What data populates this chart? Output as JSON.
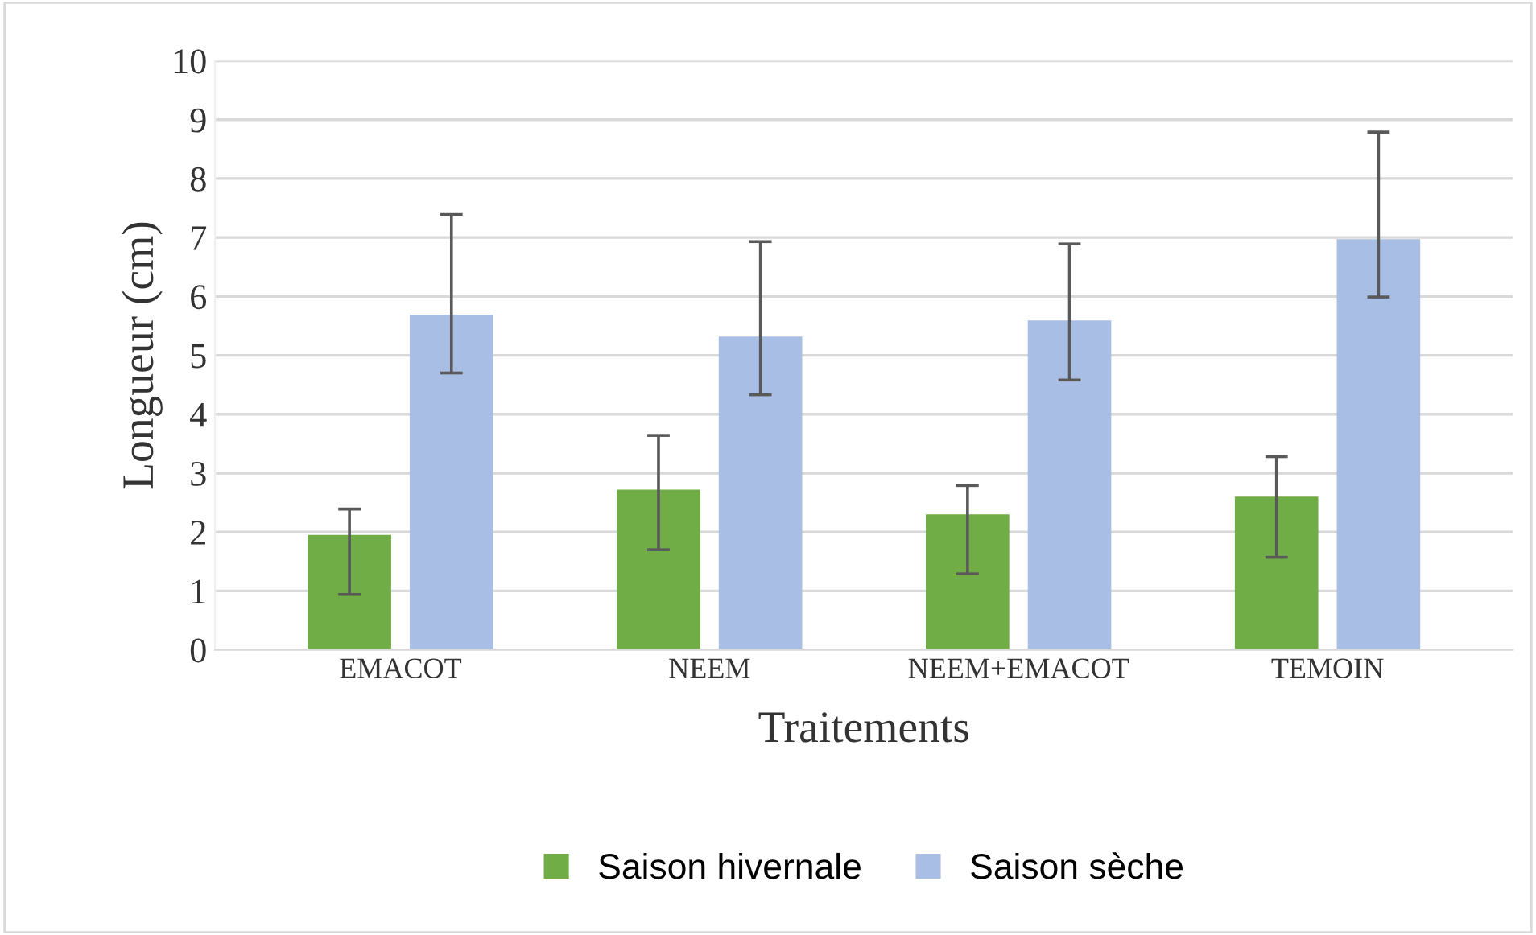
{
  "chart_data": {
    "type": "bar",
    "xlabel": "Traitements",
    "ylabel": "Longueur (cm)",
    "categories": [
      "EMACOT",
      "NEEM",
      "NEEM+EMACOT",
      "TEMOIN"
    ],
    "series": [
      {
        "name": "Saison hivernale",
        "color": "#70ad47",
        "values": [
          1.95,
          2.72,
          2.3,
          2.6
        ],
        "errors": [
          [
            0.94,
            2.39
          ],
          [
            1.7,
            3.64
          ],
          [
            1.29,
            2.79
          ],
          [
            1.57,
            3.28
          ]
        ]
      },
      {
        "name": "Saison sèche",
        "color": "#a9bee4",
        "values": [
          5.69,
          5.32,
          5.59,
          6.97
        ],
        "errors": [
          [
            4.7,
            7.39
          ],
          [
            4.33,
            6.93
          ],
          [
            4.58,
            6.89
          ],
          [
            5.99,
            8.79
          ]
        ]
      }
    ],
    "ylim": [
      0,
      10
    ],
    "yticks": [
      0,
      1,
      2,
      3,
      4,
      5,
      6,
      7,
      8,
      9,
      10
    ],
    "grid": "y",
    "legend": "bottom"
  }
}
